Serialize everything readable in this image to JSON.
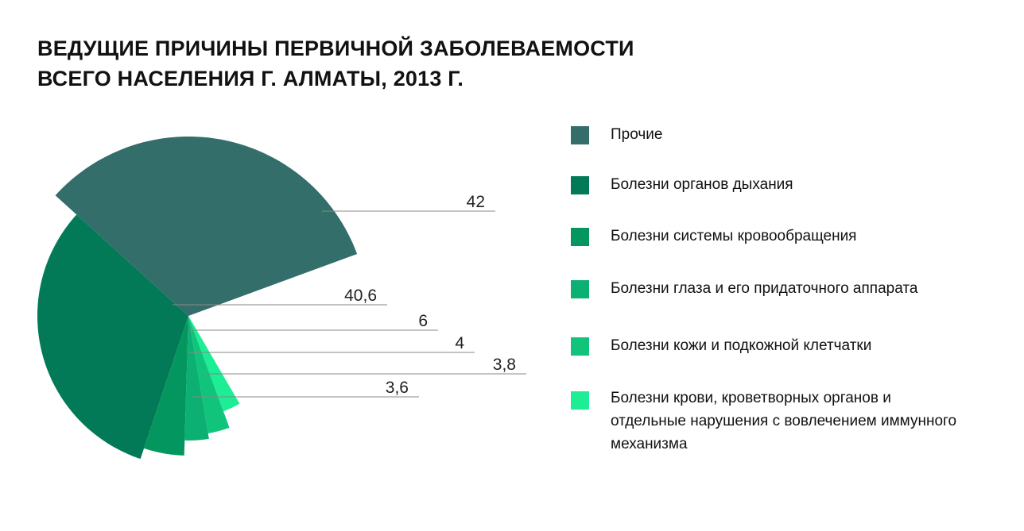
{
  "chart_data": {
    "type": "pie",
    "title_lines": [
      "ВЕДУЩИЕ ПРИЧИНЫ ПЕРВИЧНОЙ ЗАБОЛЕВАЕМОСТИ",
      "ВСЕГО НАСЕЛЕНИЯ Г. АЛМАТЫ, 2013 Г."
    ],
    "categories": [
      "Прочие",
      "Болезни органов дыхания",
      "Болезни системы кровообращения",
      "Болезни глаза и его придаточного аппарата",
      "Болезни кожи и подкожной клетчатки",
      "Болезни крови, кроветворных органов и отдельные нарушения с вовлечением иммунного механизма"
    ],
    "values": [
      42,
      40.6,
      6,
      4,
      3.8,
      3.6
    ],
    "value_labels": [
      "42",
      "40,6",
      "6",
      "4",
      "3,8",
      "3,6"
    ],
    "colors": [
      "#336e6b",
      "#027a57",
      "#03975f",
      "#0bb072",
      "#10c47c",
      "#1ded94"
    ],
    "legend_position": "right"
  }
}
